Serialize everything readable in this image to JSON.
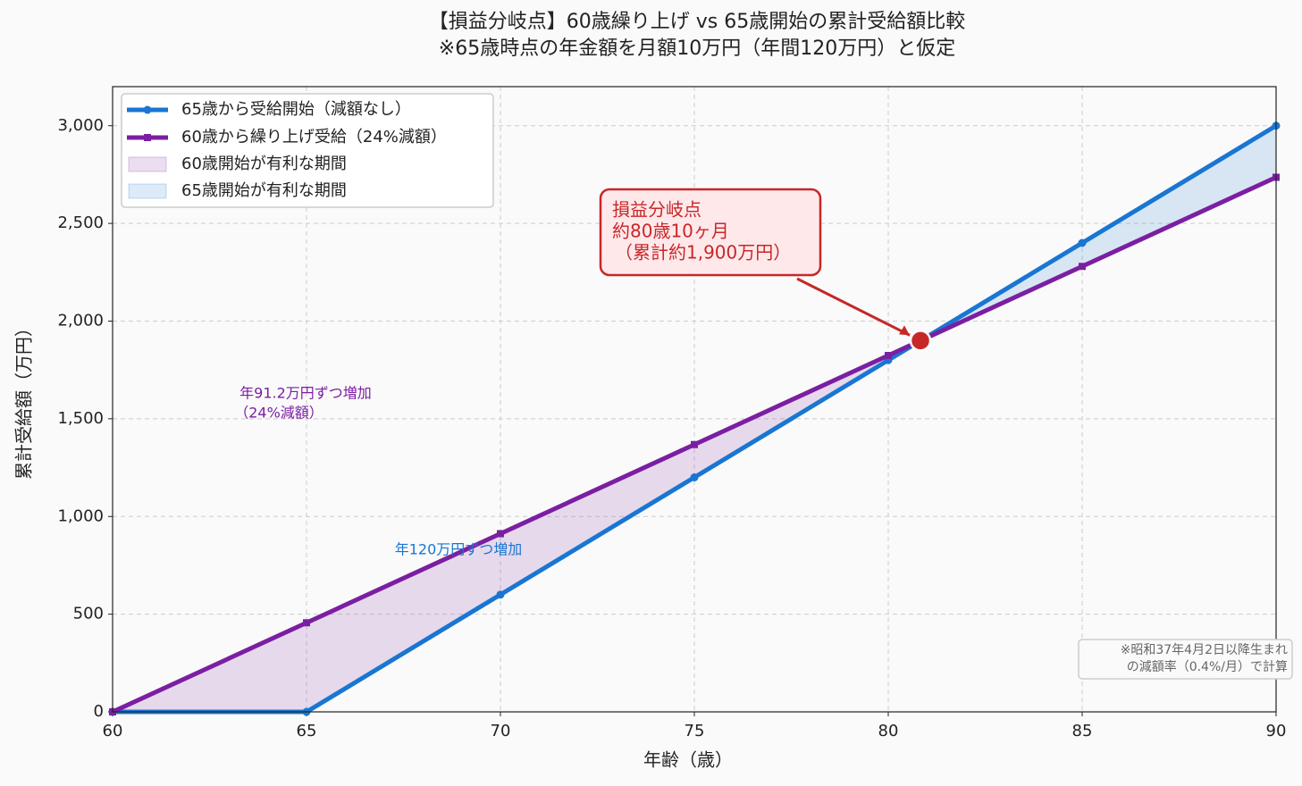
{
  "chart_data": {
    "type": "line",
    "title": [
      "【損益分岐点】60歳繰り上げ vs 65歳開始の累計受給額比較",
      "※65歳時点の年金額を月額10万円（年間120万円）と仮定"
    ],
    "x_label": "年齢（歳）",
    "y_label": "累計受給額（万円）",
    "x": [
      60,
      65,
      70,
      75,
      80,
      85,
      90
    ],
    "series": [
      {
        "name": "65歳から受給開始（減額なし）",
        "color": "#1976d2",
        "marker": "circle",
        "values": [
          0,
          0,
          600,
          1200,
          1800,
          2400,
          3000
        ]
      },
      {
        "name": "60歳から繰り上げ受給（24%減額）",
        "color": "#7b1fa2",
        "marker": "square",
        "values": [
          0,
          456,
          912,
          1368,
          1824,
          2280,
          2736
        ]
      }
    ],
    "fills": [
      {
        "name": "60歳開始が有利な期間",
        "color": "#7b1fa2"
      },
      {
        "name": "65歳開始が有利な期間",
        "color": "#1976d2"
      }
    ],
    "xlim": [
      60,
      90
    ],
    "ylim": [
      0,
      3200
    ],
    "xticks": [
      60,
      65,
      70,
      75,
      80,
      85,
      90
    ],
    "yticks": [
      0,
      500,
      {
        "value": 1000,
        "label": "1,000"
      },
      {
        "value": 1500,
        "label": "1,500"
      },
      {
        "value": 2000,
        "label": "2,000"
      },
      {
        "value": 2500,
        "label": "2,500"
      },
      {
        "value": 3000,
        "label": "3,000"
      }
    ],
    "grid": true,
    "legend": "upper left",
    "breakeven": {
      "x": 80.83,
      "y": 1900,
      "color": "#c62828",
      "label": [
        "損益分岐点",
        "約80歳10ヶ月",
        "（累計約1,900万円）"
      ]
    },
    "notes": [
      {
        "lines": [
          "年91.2万円ずつ増加",
          "（24%減額）"
        ],
        "color": "#7b1fa2"
      },
      {
        "lines": [
          "年120万円ずつ増加"
        ],
        "color": "#1976d2"
      }
    ],
    "footnote": [
      "※昭和37年4月2日以降生まれ",
      "の減額率（0.4%/月）で計算"
    ]
  }
}
